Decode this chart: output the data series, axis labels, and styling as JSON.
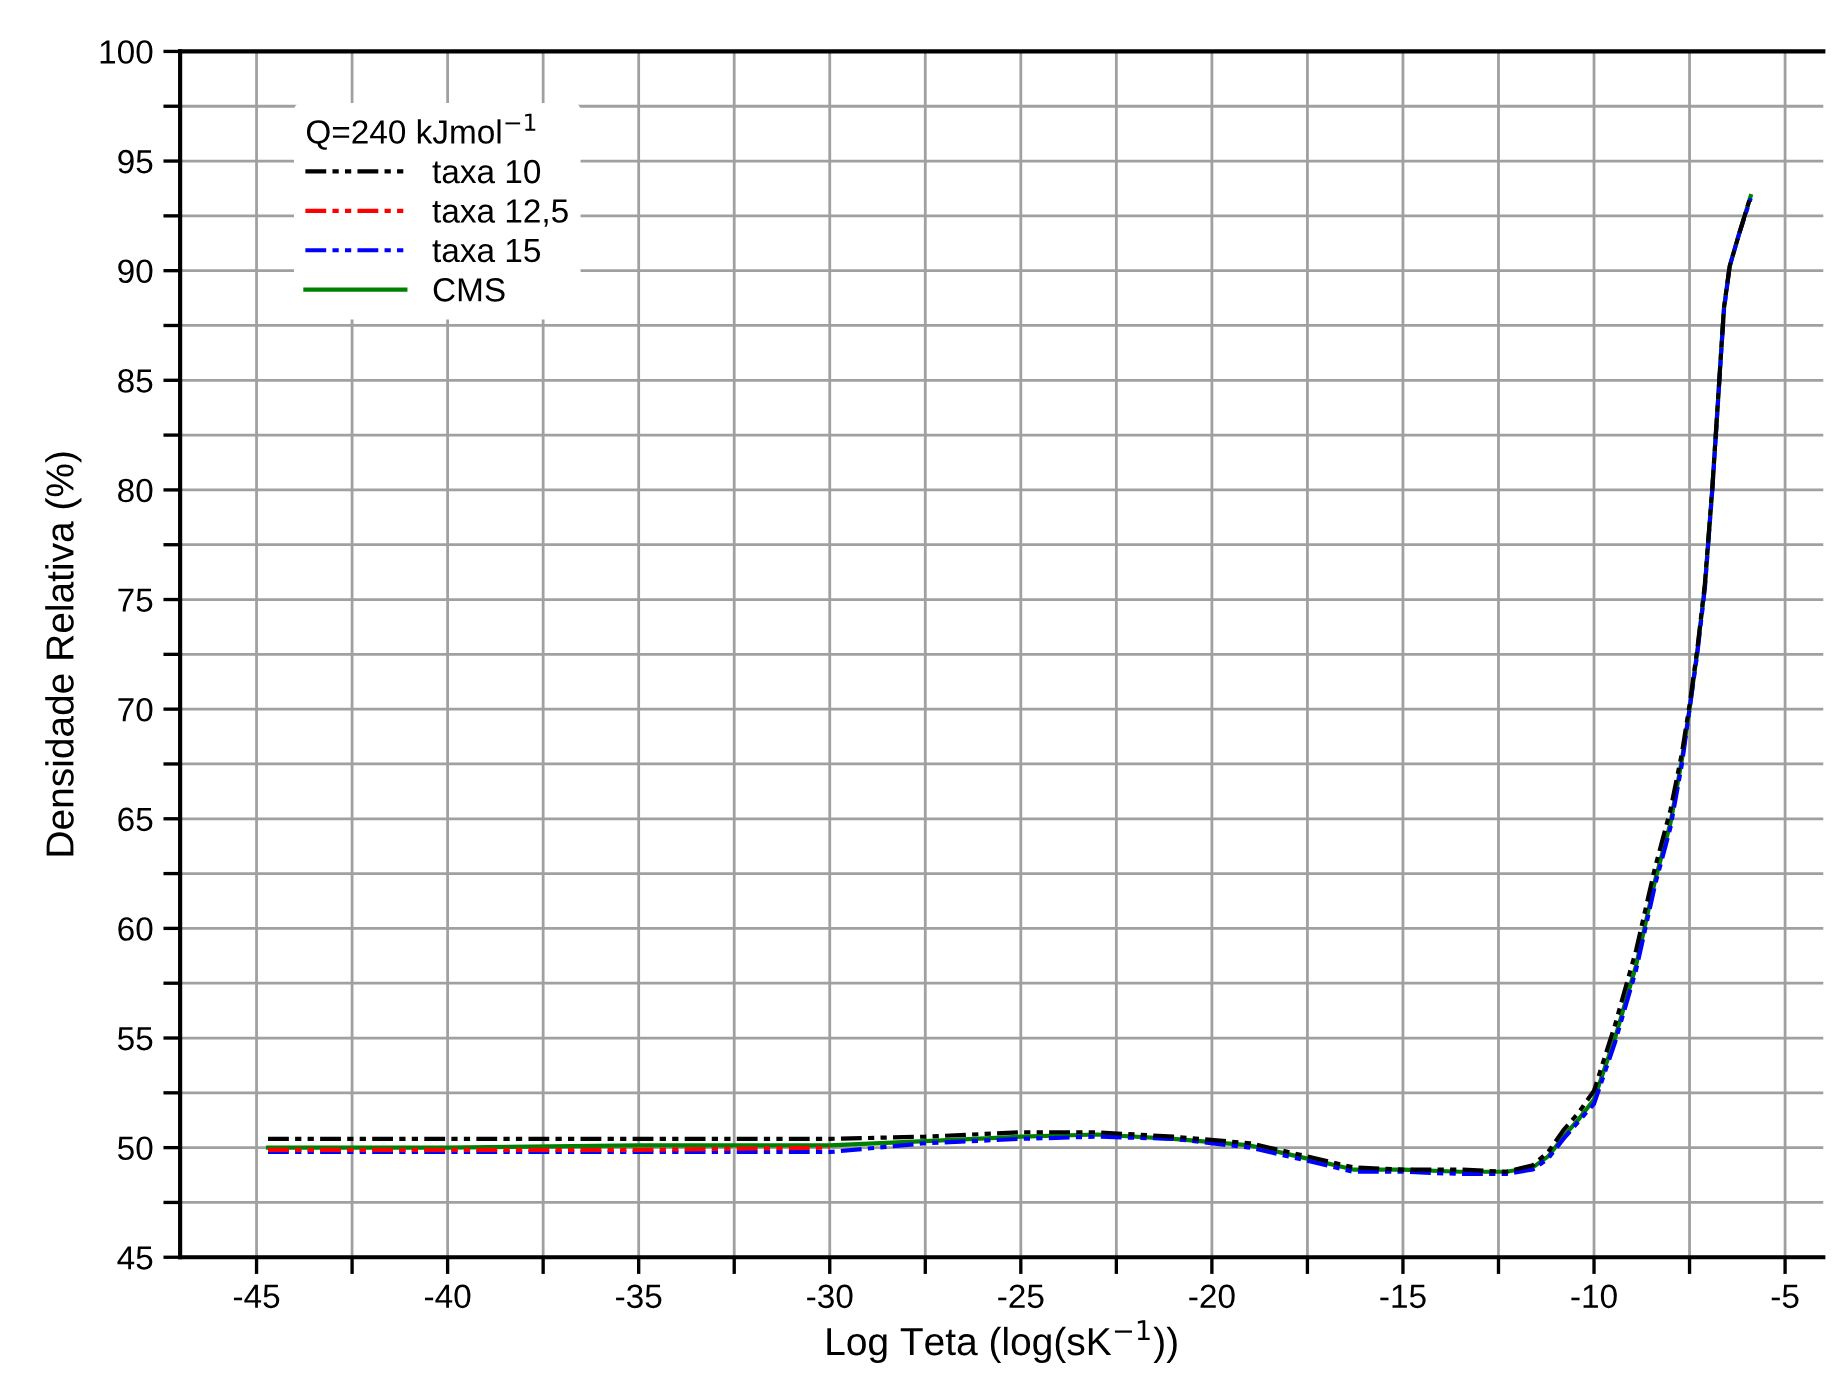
{
  "chart_data": {
    "type": "line",
    "xlabel": "Log Teta (log(sK$^{−1}$))",
    "ylabel": "Densidade Relativa (%)",
    "legend_title": "Q=240 kJmol$^{−1}$",
    "x": [
      -44.7,
      -40,
      -35,
      -30,
      -27.5,
      -25,
      -23,
      -21,
      -19,
      -17.5,
      -16.3,
      -15,
      -13.5,
      -12.3,
      -11.6,
      -11.2,
      -10.8,
      -10.4,
      -10,
      -9.45,
      -8.9,
      -8.4,
      -8,
      -7.7,
      -7.5,
      -7.3,
      -7.1,
      -6.9,
      -6.7,
      -6.6,
      -6.45,
      -6.2,
      -5.9
    ],
    "series": [
      {
        "name": "taxa 10",
        "color": "#000000",
        "line_style": "dashed",
        "values": [
          50.4,
          50.4,
          50.4,
          50.4,
          50.5,
          50.7,
          50.7,
          50.5,
          50.2,
          49.6,
          49.1,
          49.0,
          49.0,
          48.9,
          49.2,
          49.8,
          50.8,
          51.6,
          52.6,
          55.6,
          59.0,
          62.8,
          65.4,
          68.0,
          70.2,
          72.7,
          75.7,
          80.2,
          85.6,
          88.3,
          90.2,
          91.7,
          93.4
        ]
      },
      {
        "name": "taxa 12,5",
        "color": "#ff0000",
        "line_style": "dashed",
        "values": [
          49.9,
          49.9,
          49.9,
          50.0,
          null,
          null,
          null,
          null,
          null,
          null,
          null,
          null,
          null,
          null,
          null,
          null,
          null,
          null,
          null,
          null,
          null,
          null,
          null,
          null,
          null,
          null,
          null,
          null,
          null,
          null,
          null,
          null,
          null
        ]
      },
      {
        "name": "taxa 15",
        "color": "#0000ff",
        "line_style": "dashed",
        "values": [
          49.8,
          49.8,
          49.8,
          49.8,
          50.2,
          50.4,
          50.5,
          50.4,
          50.0,
          49.4,
          48.9,
          48.9,
          48.8,
          48.8,
          49.0,
          49.5,
          50.4,
          51.2,
          52.0,
          54.8,
          58.1,
          62.0,
          64.6,
          67.5,
          70,
          72.5,
          75.5,
          80.1,
          85.5,
          88.2,
          90.2,
          91.7,
          93.3
        ]
      },
      {
        "name": "CMS",
        "color": "#008000",
        "line_style": "solid",
        "values": [
          50.0,
          50.0,
          50.1,
          50.1,
          50.3,
          50.5,
          50.6,
          50.4,
          50.1,
          49.5,
          49.0,
          49.0,
          48.9,
          48.9,
          49.1,
          49.6,
          50.5,
          51.3,
          52.2,
          55.0,
          58.3,
          62.2,
          64.8,
          67.7,
          70,
          72.6,
          75.6,
          80.2,
          85.6,
          88.3,
          90.2,
          91.7,
          93.4
        ]
      }
    ],
    "xlim": [
      -47,
      -4
    ],
    "ylim": [
      45,
      100
    ],
    "xticks": [
      -45,
      {
        "value": -42.5,
        "label": null
      },
      -40,
      {
        "value": -37.5,
        "label": null
      },
      -35,
      {
        "value": -32.5,
        "label": null
      },
      -30,
      {
        "value": -27.5,
        "label": null
      },
      -25,
      {
        "value": -22.5,
        "label": null
      },
      -20,
      {
        "value": -17.5,
        "label": null
      },
      -15,
      {
        "value": -12.5,
        "label": null
      },
      -10,
      {
        "value": -7.5,
        "label": null
      },
      -5
    ],
    "yticks": [
      45,
      {
        "value": 47.5,
        "label": null
      },
      50,
      {
        "value": 52.5,
        "label": null
      },
      55,
      {
        "value": 57.5,
        "label": null
      },
      60,
      {
        "value": 62.5,
        "label": null
      },
      65,
      {
        "value": 67.5,
        "label": null
      },
      70,
      {
        "value": 72.5,
        "label": null
      },
      75,
      {
        "value": 77.5,
        "label": null
      },
      80,
      {
        "value": 82.5,
        "label": null
      },
      85,
      {
        "value": 87.5,
        "label": null
      },
      90,
      {
        "value": 92.5,
        "label": null
      },
      95,
      {
        "value": 97.5,
        "label": null
      },
      100
    ],
    "grid": true,
    "legend": "top left",
    "marker": "none"
  }
}
